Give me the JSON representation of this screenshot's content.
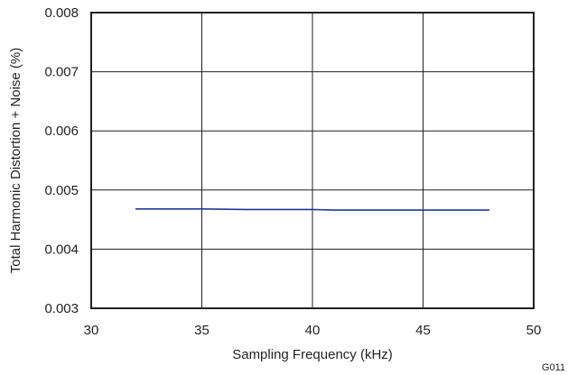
{
  "chart_data": {
    "type": "line",
    "title": "",
    "xlabel": "Sampling Frequency (kHz)",
    "ylabel": "Total Harmonic Distortion + Noise (%)",
    "xlim": [
      30,
      50
    ],
    "ylim": [
      0.003,
      0.008
    ],
    "x_ticks": [
      "30",
      "35",
      "40",
      "45",
      "50"
    ],
    "y_ticks": [
      "0.003",
      "0.004",
      "0.005",
      "0.006",
      "0.007",
      "0.008"
    ],
    "grid": true,
    "series": [
      {
        "color": "#1f3a93",
        "x": [
          32,
          35,
          37,
          40,
          41,
          44,
          48
        ],
        "y": [
          0.00468,
          0.00468,
          0.00467,
          0.00467,
          0.00466,
          0.00466,
          0.00466
        ]
      }
    ],
    "figure_code": "G011"
  }
}
